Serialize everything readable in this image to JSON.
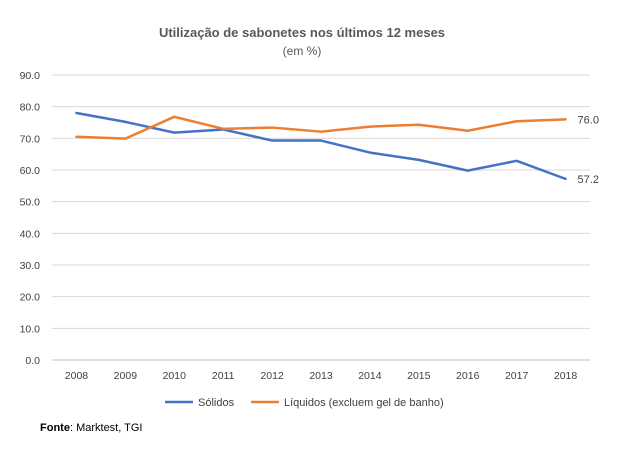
{
  "chart_data": {
    "type": "line",
    "title": "Utilização de sabonetes nos últimos 12 meses",
    "subtitle": "(em %)",
    "categories": [
      "2008",
      "2009",
      "2010",
      "2011",
      "2012",
      "2013",
      "2014",
      "2015",
      "2016",
      "2017",
      "2018"
    ],
    "series": [
      {
        "name": "Sólidos",
        "color": "#4472C4",
        "values": [
          78.0,
          75.2,
          71.8,
          72.8,
          69.3,
          69.3,
          65.5,
          63.2,
          59.8,
          62.9,
          57.2
        ],
        "end_label": "57.2"
      },
      {
        "name": "Líquidos (excluem gel de banho)",
        "color": "#ED7D31",
        "values": [
          70.5,
          69.9,
          76.8,
          73.0,
          73.4,
          72.1,
          73.7,
          74.3,
          72.4,
          75.4,
          76.0
        ],
        "end_label": "76.0"
      }
    ],
    "ylim": [
      0,
      90
    ],
    "y_ticks": [
      "0.0",
      "10.0",
      "20.0",
      "30.0",
      "40.0",
      "50.0",
      "60.0",
      "70.0",
      "80.0",
      "90.0"
    ],
    "y_tick_values": [
      0,
      10,
      20,
      30,
      40,
      50,
      60,
      70,
      80,
      90
    ],
    "gridlines": true,
    "legend_position": "bottom"
  },
  "source": {
    "label": "Fonte",
    "text": ": Marktest, TGI"
  }
}
